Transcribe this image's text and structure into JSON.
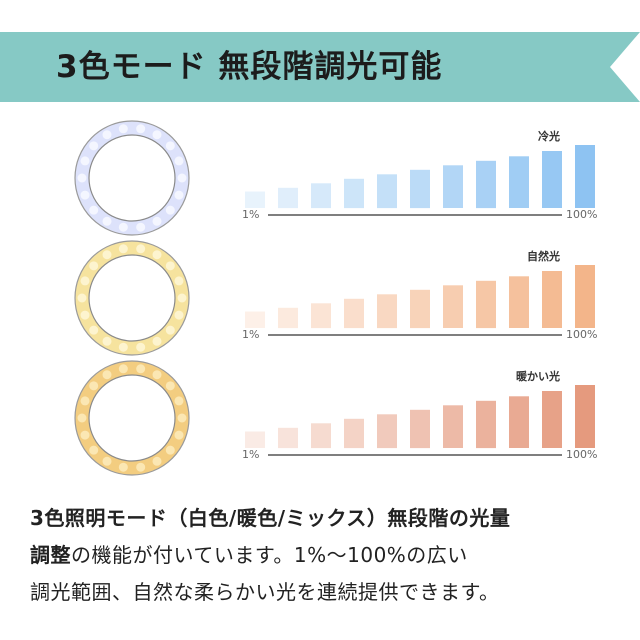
{
  "banner": {
    "title": "3色モード  無段階調光可能",
    "color": "#86c9c5"
  },
  "modes": [
    {
      "label": "冷光",
      "start": "1%",
      "end": "100%",
      "bar_color": "#8ec3f2",
      "ring_glow": "#dde2fb",
      "ring_led": "#f4f6ff",
      "levels": [
        0.22,
        0.27,
        0.33,
        0.39,
        0.45,
        0.51,
        0.57,
        0.63,
        0.69,
        0.76,
        0.84
      ]
    },
    {
      "label": "自然光",
      "start": "1%",
      "end": "100%",
      "bar_color": "#f3b58a",
      "ring_glow": "#f6e39e",
      "ring_led": "#fdf4cf",
      "levels": [
        0.22,
        0.27,
        0.33,
        0.39,
        0.45,
        0.51,
        0.57,
        0.63,
        0.69,
        0.76,
        0.84
      ]
    },
    {
      "label": "暖かい光",
      "start": "1%",
      "end": "100%",
      "bar_color": "#e59a7e",
      "ring_glow": "#f3cd80",
      "ring_led": "#fbe7b3",
      "levels": [
        0.22,
        0.27,
        0.33,
        0.39,
        0.45,
        0.51,
        0.57,
        0.63,
        0.69,
        0.76,
        0.84
      ]
    }
  ],
  "description": {
    "line1_bold": "3色照明モード（白色/暖色/ミックス）無段階の光量",
    "line2_bold": "調整",
    "line2_rest": "の機能が付いています。1%～100%の広い",
    "line3": "調光範囲、自然な柔らかい光を連続提供できます。"
  }
}
